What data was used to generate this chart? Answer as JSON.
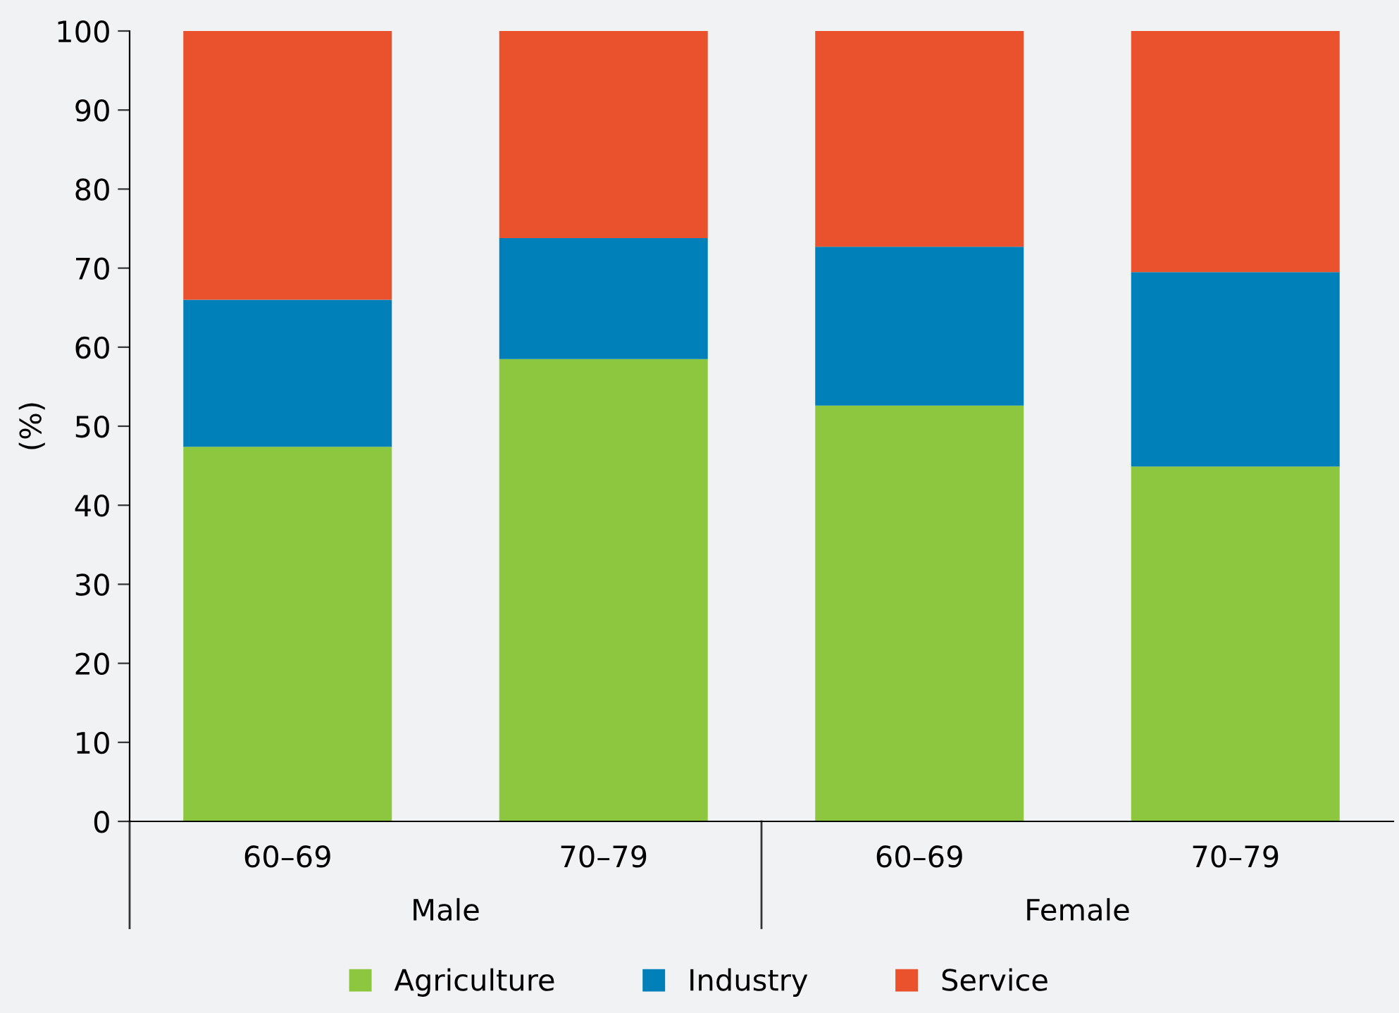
{
  "chart_data": {
    "type": "bar",
    "stacked": true,
    "ylabel": "(%)",
    "categories": [
      "60–69",
      "70–79",
      "60–69",
      "70–79"
    ],
    "series": [
      {
        "name": "Agriculture",
        "color": "#8dc63f",
        "values": [
          47.4,
          58.5,
          52.6,
          44.9
        ]
      },
      {
        "name": "Industry",
        "color": "#0080b8",
        "values": [
          18.6,
          15.3,
          20.1,
          24.6
        ]
      },
      {
        "name": "Service",
        "color": "#e9522c",
        "values": [
          34.0,
          26.2,
          27.3,
          30.5
        ]
      }
    ],
    "annotations": [
      "Male",
      "Female"
    ],
    "ylim": [
      0,
      100
    ],
    "yticks": [
      0,
      10,
      20,
      30,
      40,
      50,
      60,
      70,
      80,
      90,
      100
    ],
    "grid": false,
    "legend": "bottom"
  }
}
